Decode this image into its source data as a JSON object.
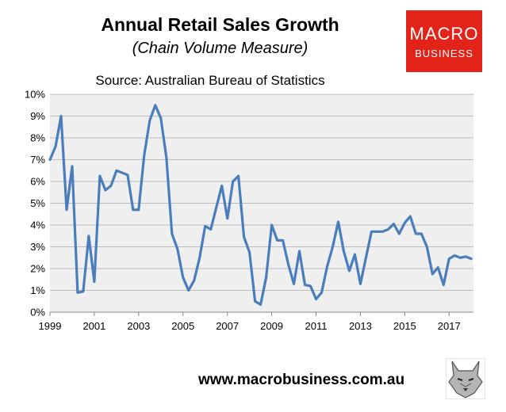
{
  "chart_data": {
    "type": "line",
    "title": "Annual Retail Sales Growth",
    "subtitle": "(Chain Volume Measure)",
    "source": "Source: Australian Bureau of Statistics",
    "xlabel": "",
    "ylabel": "",
    "ylim": [
      0,
      10
    ],
    "xlim": [
      1999,
      2018.1
    ],
    "grid": true,
    "y_ticks": [
      "0%",
      "1%",
      "2%",
      "3%",
      "4%",
      "5%",
      "6%",
      "7%",
      "8%",
      "9%",
      "10%"
    ],
    "x_ticks": [
      "1999",
      "2001",
      "2003",
      "2005",
      "2007",
      "2009",
      "2011",
      "2013",
      "2015",
      "2017"
    ],
    "series": [
      {
        "color": "#4a7ebb",
        "x": [
          1999.0,
          1999.25,
          1999.5,
          1999.75,
          2000.0,
          2000.25,
          2000.5,
          2000.75,
          2001.0,
          2001.25,
          2001.5,
          2001.75,
          2002.0,
          2002.25,
          2002.5,
          2002.75,
          2003.0,
          2003.25,
          2003.5,
          2003.75,
          2004.0,
          2004.25,
          2004.5,
          2004.75,
          2005.0,
          2005.25,
          2005.5,
          2005.75,
          2006.0,
          2006.25,
          2006.5,
          2006.75,
          2007.0,
          2007.25,
          2007.5,
          2007.75,
          2008.0,
          2008.25,
          2008.5,
          2008.75,
          2009.0,
          2009.25,
          2009.5,
          2009.75,
          2010.0,
          2010.25,
          2010.5,
          2010.75,
          2011.0,
          2011.25,
          2011.5,
          2011.75,
          2012.0,
          2012.25,
          2012.5,
          2012.75,
          2013.0,
          2013.25,
          2013.5,
          2013.75,
          2014.0,
          2014.25,
          2014.5,
          2014.75,
          2015.0,
          2015.25,
          2015.5,
          2015.75,
          2016.0,
          2016.25,
          2016.5,
          2016.75,
          2017.0,
          2017.25,
          2017.5,
          2017.75,
          2018.0
        ],
        "values": [
          7.0,
          7.6,
          9.0,
          4.7,
          6.7,
          0.9,
          0.95,
          3.5,
          1.4,
          6.25,
          5.6,
          5.8,
          6.5,
          6.4,
          6.3,
          4.7,
          4.7,
          7.2,
          8.8,
          9.5,
          8.9,
          7.1,
          3.6,
          2.9,
          1.6,
          1.0,
          1.45,
          2.5,
          3.95,
          3.8,
          4.8,
          5.8,
          4.3,
          6.0,
          6.25,
          3.45,
          2.75,
          0.5,
          0.35,
          1.6,
          4.0,
          3.3,
          3.3,
          2.2,
          1.3,
          2.8,
          1.25,
          1.2,
          0.6,
          0.9,
          2.1,
          3.0,
          4.15,
          2.8,
          1.9,
          2.65,
          1.3,
          2.5,
          3.7,
          3.7,
          3.7,
          3.8,
          4.05,
          3.6,
          4.1,
          4.4,
          3.6,
          3.6,
          3.0,
          1.75,
          2.05,
          1.25,
          2.45,
          2.6,
          2.5,
          2.55,
          2.45
        ]
      }
    ]
  },
  "logo": {
    "line1": "MACRO",
    "line2": "BUSINESS"
  },
  "footer": {
    "url": "www.macrobusiness.com.au"
  },
  "icons": {
    "footer_logo": "wolf-icon"
  }
}
